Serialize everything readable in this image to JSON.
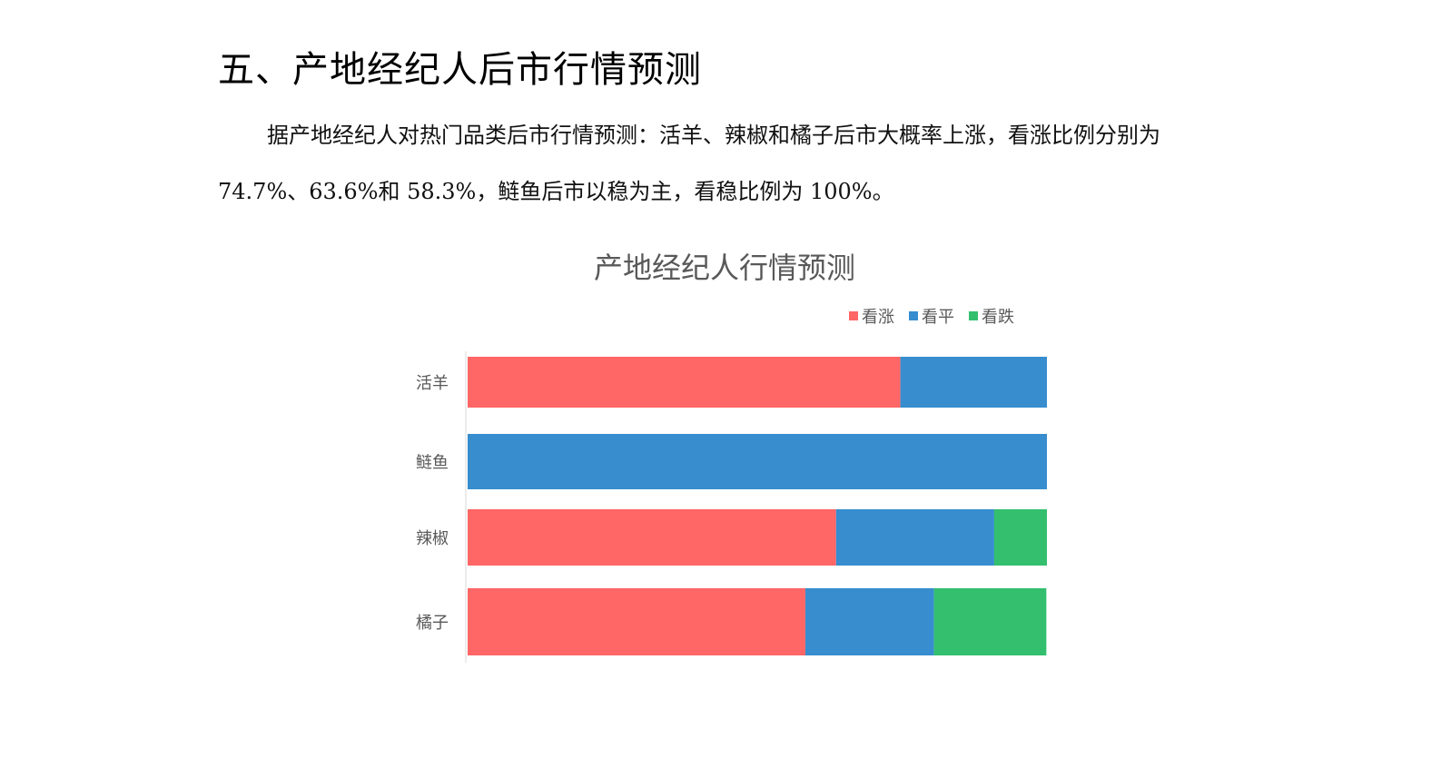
{
  "document": {
    "heading": "五、产地经纪人后市行情预测",
    "paragraph": "据产地经纪人对热门品类后市行情预测：活羊、辣椒和橘子后市大概率上涨，看涨比例分别为 74.7%、63.6%和 58.3%，鲢鱼后市以稳为主，看稳比例为 100%。"
  },
  "chart_data": {
    "type": "bar",
    "orientation": "horizontal",
    "stacked": true,
    "title": "产地经纪人行情预测",
    "categories": [
      "活羊",
      "鲢鱼",
      "辣椒",
      "橘子"
    ],
    "series": [
      {
        "name": "看涨",
        "color": "#ff6666",
        "values": [
          74.7,
          0,
          63.6,
          58.3
        ]
      },
      {
        "name": "看平",
        "color": "#378dce",
        "values": [
          25.3,
          100,
          27.3,
          22.2
        ]
      },
      {
        "name": "看跌",
        "color": "#33bf6e",
        "values": [
          0,
          0,
          9.1,
          19.4
        ]
      }
    ],
    "xlim": [
      0,
      100
    ],
    "grid": false,
    "legend_position": "top-right"
  }
}
